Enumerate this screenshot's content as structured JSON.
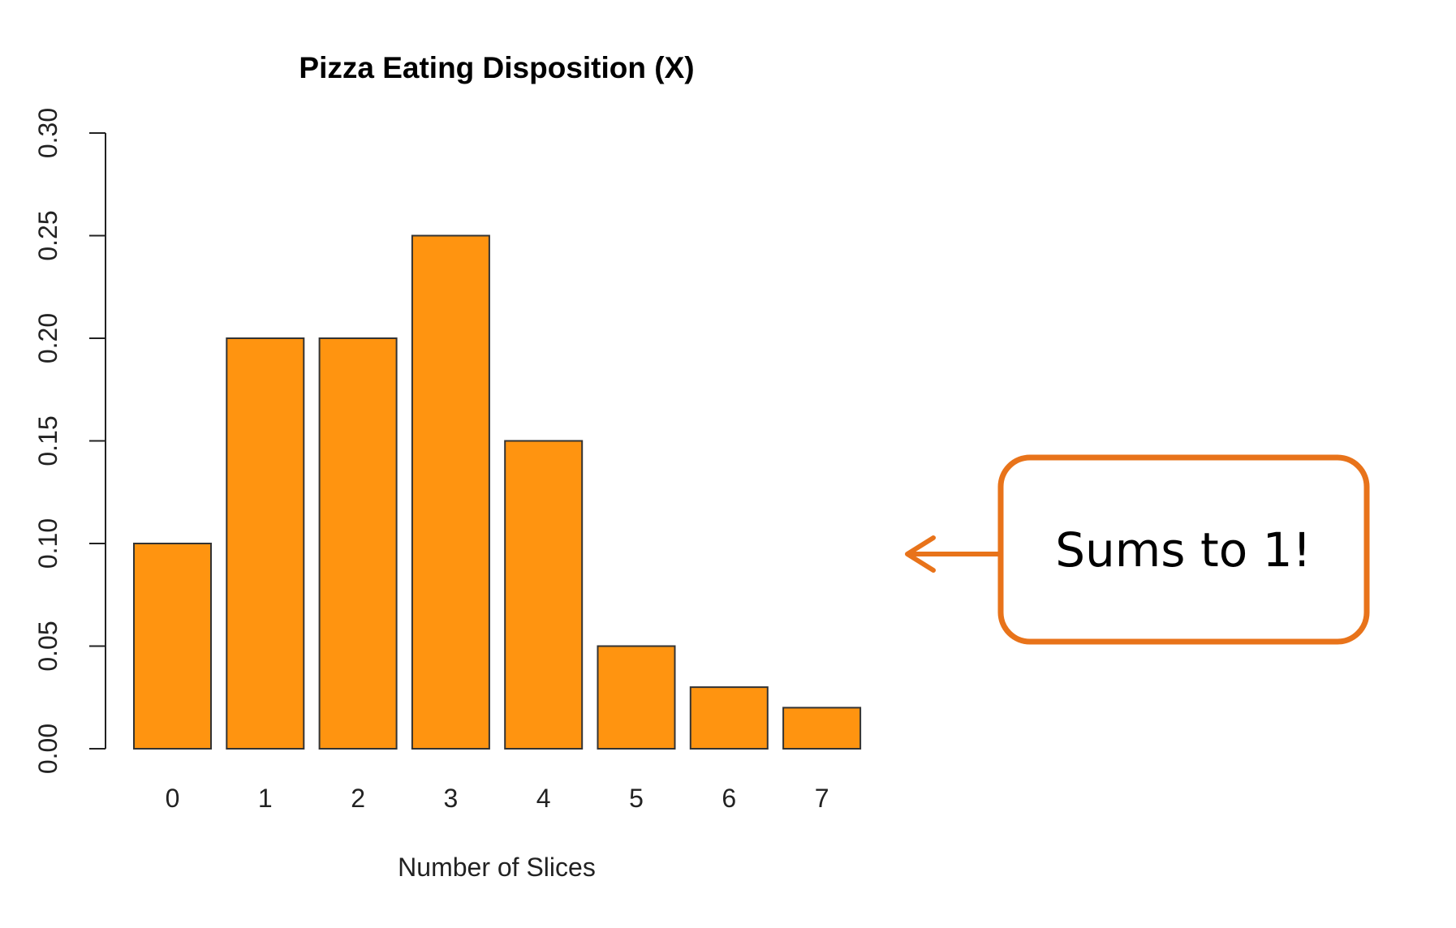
{
  "chart_data": {
    "type": "bar",
    "title": "Pizza Eating Disposition (X)",
    "xlabel": "Number of Slices",
    "ylabel": "",
    "categories": [
      "0",
      "1",
      "2",
      "3",
      "4",
      "5",
      "6",
      "7"
    ],
    "values": [
      0.1,
      0.2,
      0.2,
      0.25,
      0.15,
      0.05,
      0.03,
      0.02
    ],
    "ylim": [
      0,
      0.3
    ],
    "yticks": [
      "0.00",
      "0.05",
      "0.10",
      "0.15",
      "0.20",
      "0.25",
      "0.30"
    ],
    "grid": false,
    "bar_color": "#FF9410",
    "bar_edge_color": "#333333"
  },
  "annotation": {
    "text": "Sums to 1!",
    "border_color": "#E8731A",
    "arrow_color": "#E8731A",
    "arrow_direction": "left"
  }
}
